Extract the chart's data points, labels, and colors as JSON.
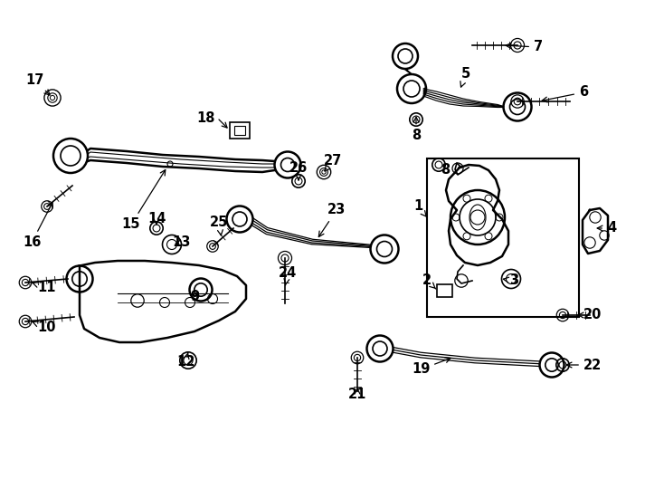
{
  "bg_color": "#ffffff",
  "line_color": "#000000",
  "figsize": [
    7.34,
    5.4
  ],
  "dpi": 100,
  "xlim": [
    0,
    7.34
  ],
  "ylim": [
    0,
    5.4
  ]
}
